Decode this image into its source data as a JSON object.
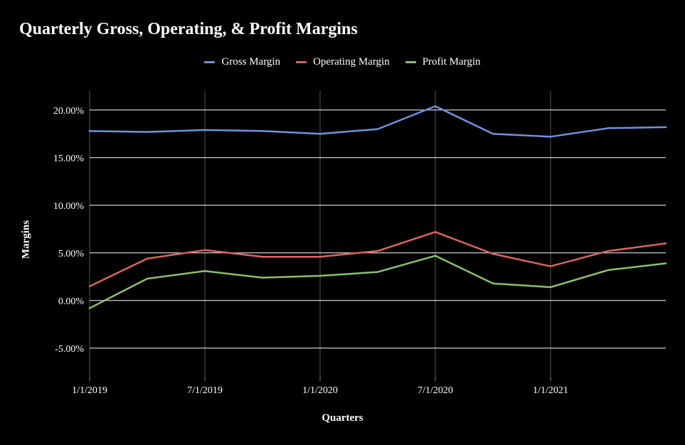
{
  "chart_data": {
    "type": "line",
    "title": "Quarterly Gross, Operating, & Profit Margins",
    "xlabel": "Quarters",
    "ylabel": "Margins",
    "x": [
      "1/1/2019",
      "4/1/2019",
      "7/1/2019",
      "10/1/2019",
      "1/1/2020",
      "4/1/2020",
      "7/1/2020",
      "10/1/2020",
      "1/1/2021",
      "4/1/2021",
      "7/1/2021"
    ],
    "x_tick_labels": [
      "1/1/2019",
      "7/1/2019",
      "1/1/2020",
      "7/1/2020",
      "1/1/2021"
    ],
    "y_tick_labels": [
      "20.00%",
      "15.00%",
      "10.00%",
      "5.00%",
      "0.00%",
      "-5.00%"
    ],
    "y_ticks": [
      20,
      15,
      10,
      5,
      0,
      -5
    ],
    "ylim": [
      -8,
      22
    ],
    "grid": "on",
    "legend_position": "top",
    "series": [
      {
        "name": "Gross Margin",
        "color": "#6d94dd",
        "values": [
          17.8,
          17.7,
          17.9,
          17.8,
          17.5,
          18.0,
          20.4,
          17.5,
          17.2,
          18.1,
          18.2
        ]
      },
      {
        "name": "Operating Margin",
        "color": "#db6460",
        "values": [
          1.5,
          4.4,
          5.3,
          4.6,
          4.6,
          5.2,
          7.2,
          4.9,
          3.6,
          5.2,
          6.0
        ]
      },
      {
        "name": "Profit Margin",
        "color": "#8cc06a",
        "values": [
          -0.8,
          2.3,
          3.1,
          2.4,
          2.6,
          3.0,
          4.7,
          1.8,
          1.4,
          3.2,
          3.9
        ]
      }
    ]
  }
}
